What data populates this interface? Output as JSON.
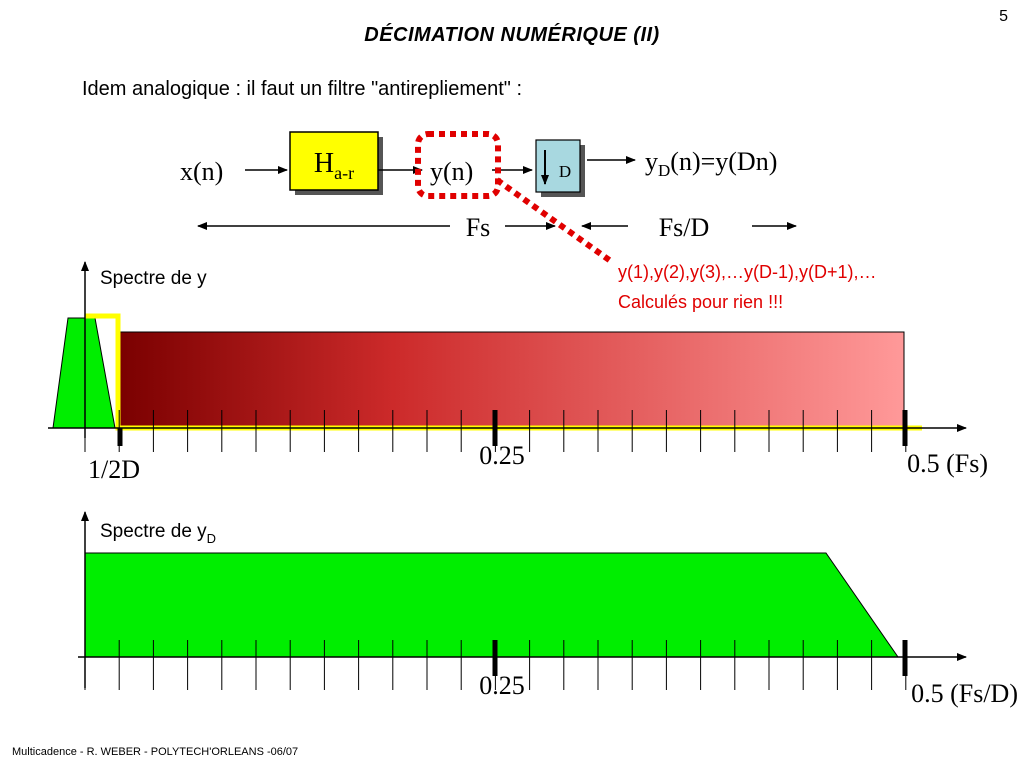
{
  "page_number": "5",
  "title": "DÉCIMATION NUMÉRIQUE (II)",
  "intro": "Idem analogique : il faut un filtre \"antirepliement\" :",
  "block_diagram": {
    "input_label": "x(n)",
    "filter": {
      "symbol": "H",
      "subscript": "a-r"
    },
    "mid_label": "y(n)",
    "decimator": {
      "symbol": "D"
    },
    "output": {
      "prefix": "y",
      "subscript": "D",
      "suffix": "(n)=y(Dn)"
    },
    "rate_in": "Fs",
    "rate_out": "Fs/D"
  },
  "annotation": {
    "line1": "y(1),y(2),y(3),…y(D-1),y(D+1),…",
    "line2": "Calculés pour rien !!!"
  },
  "spectrum_y": {
    "label": "Spectre de y",
    "tick_mid": "0.25",
    "tick_end": "0.5 (Fs)",
    "cutoff_label": "1/2D"
  },
  "spectrum_yd": {
    "label_prefix": "Spectre de y",
    "label_subscript": "D",
    "tick_mid": "0.25",
    "tick_end": "0.5 (Fs/D)"
  },
  "colors": {
    "filter_fill": "#ffff00",
    "decimator_fill": "#a8d8e0",
    "spectrum_green": "#00ee00",
    "highlight_yellow": "#ffff00",
    "annotation_red": "#e00000",
    "gradient_dark": "#7a0000",
    "gradient_light": "#ff9999"
  },
  "footer": "Multicadence - R. WEBER - POLYTECH'ORLEANS -06/07"
}
